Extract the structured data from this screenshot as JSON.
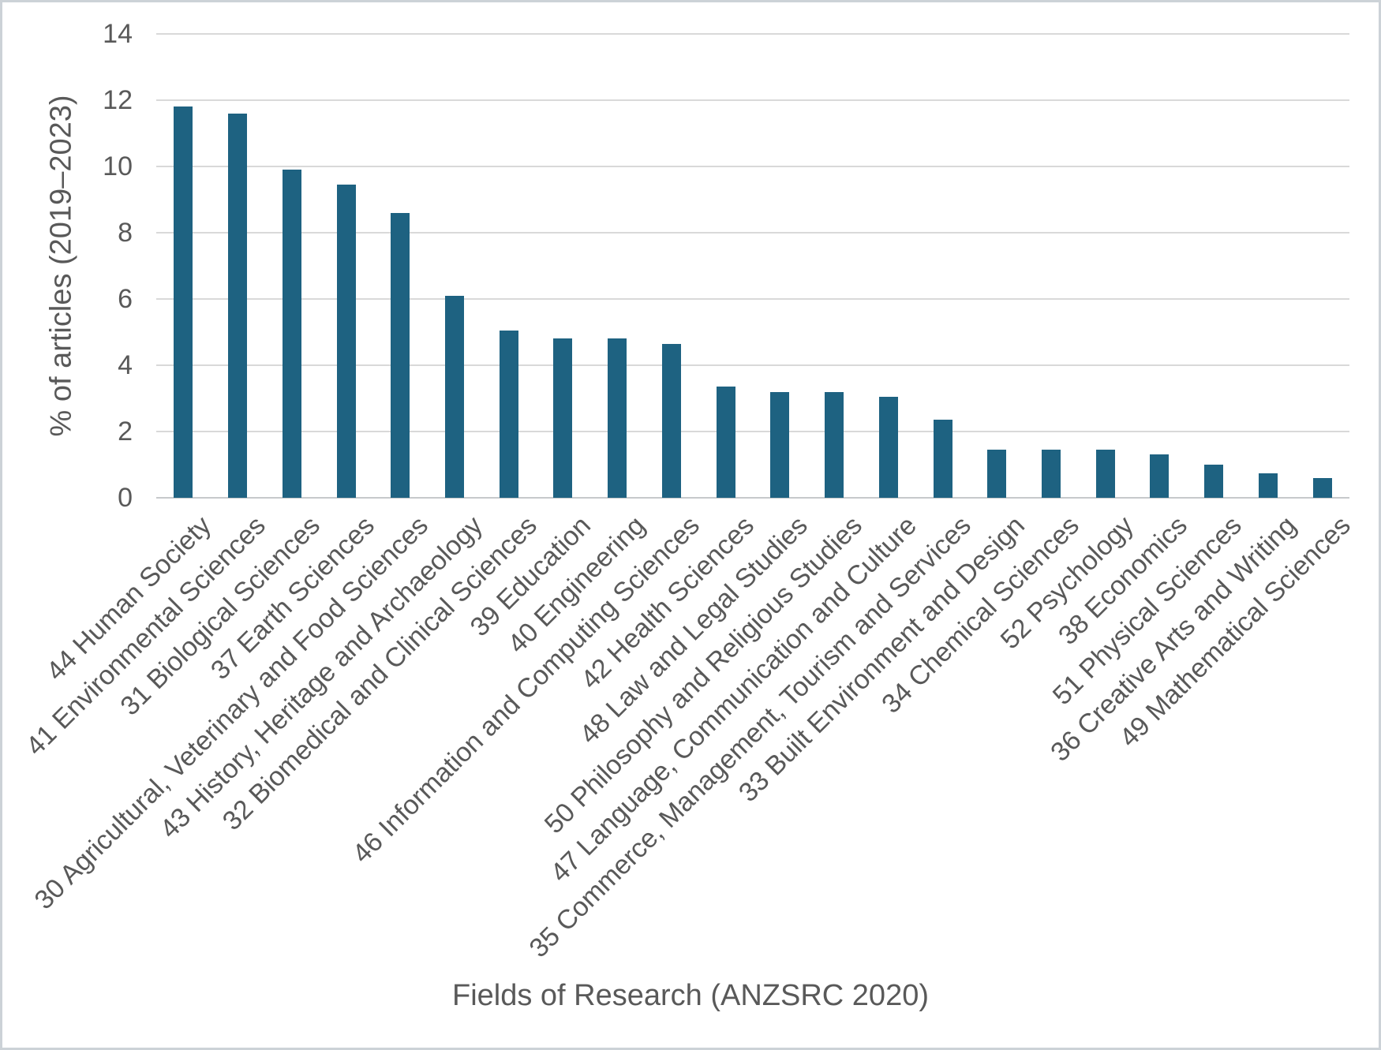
{
  "chart_data": {
    "type": "bar",
    "title": "",
    "xlabel": "Fields of Research (ANZSRC 2020)",
    "ylabel": "% of articles (2019–2023)",
    "ylim": [
      0,
      14
    ],
    "yticks": [
      0,
      2,
      4,
      6,
      8,
      10,
      12,
      14
    ],
    "grid": true,
    "legend": false,
    "bar_color": "#1e6281",
    "gridline_color": "#d9d9d9",
    "axis_line_color": "#c6c9cb",
    "text_color": "#595959",
    "categories": [
      "44 Human Society",
      "41 Environmental Sciences",
      "31 Biological Sciences",
      "37 Earth Sciences",
      "30 Agricultural, Veterinary and Food Sciences",
      "43 History, Heritage and Archaeology",
      "32 Biomedical and Clinical Sciences",
      "39 Education",
      "40 Engineering",
      "46 Information and Computing Sciences",
      "42 Health Sciences",
      "48 Law and Legal Studies",
      "50 Philosophy and Religious Studies",
      "47 Language, Communication and Culture",
      "35 Commerce, Management, Tourism and Services",
      "33 Built Environment and Design",
      "34 Chemical Sciences",
      "52 Psychology",
      "38 Economics",
      "51 Physical Sciences",
      "36 Creative Arts and Writing",
      "49 Mathematical Sciences"
    ],
    "values": [
      11.8,
      11.6,
      9.9,
      9.45,
      8.6,
      6.1,
      5.05,
      4.8,
      4.8,
      4.65,
      3.35,
      3.2,
      3.2,
      3.05,
      2.35,
      1.45,
      1.45,
      1.45,
      1.3,
      1.0,
      0.75,
      0.6
    ]
  }
}
